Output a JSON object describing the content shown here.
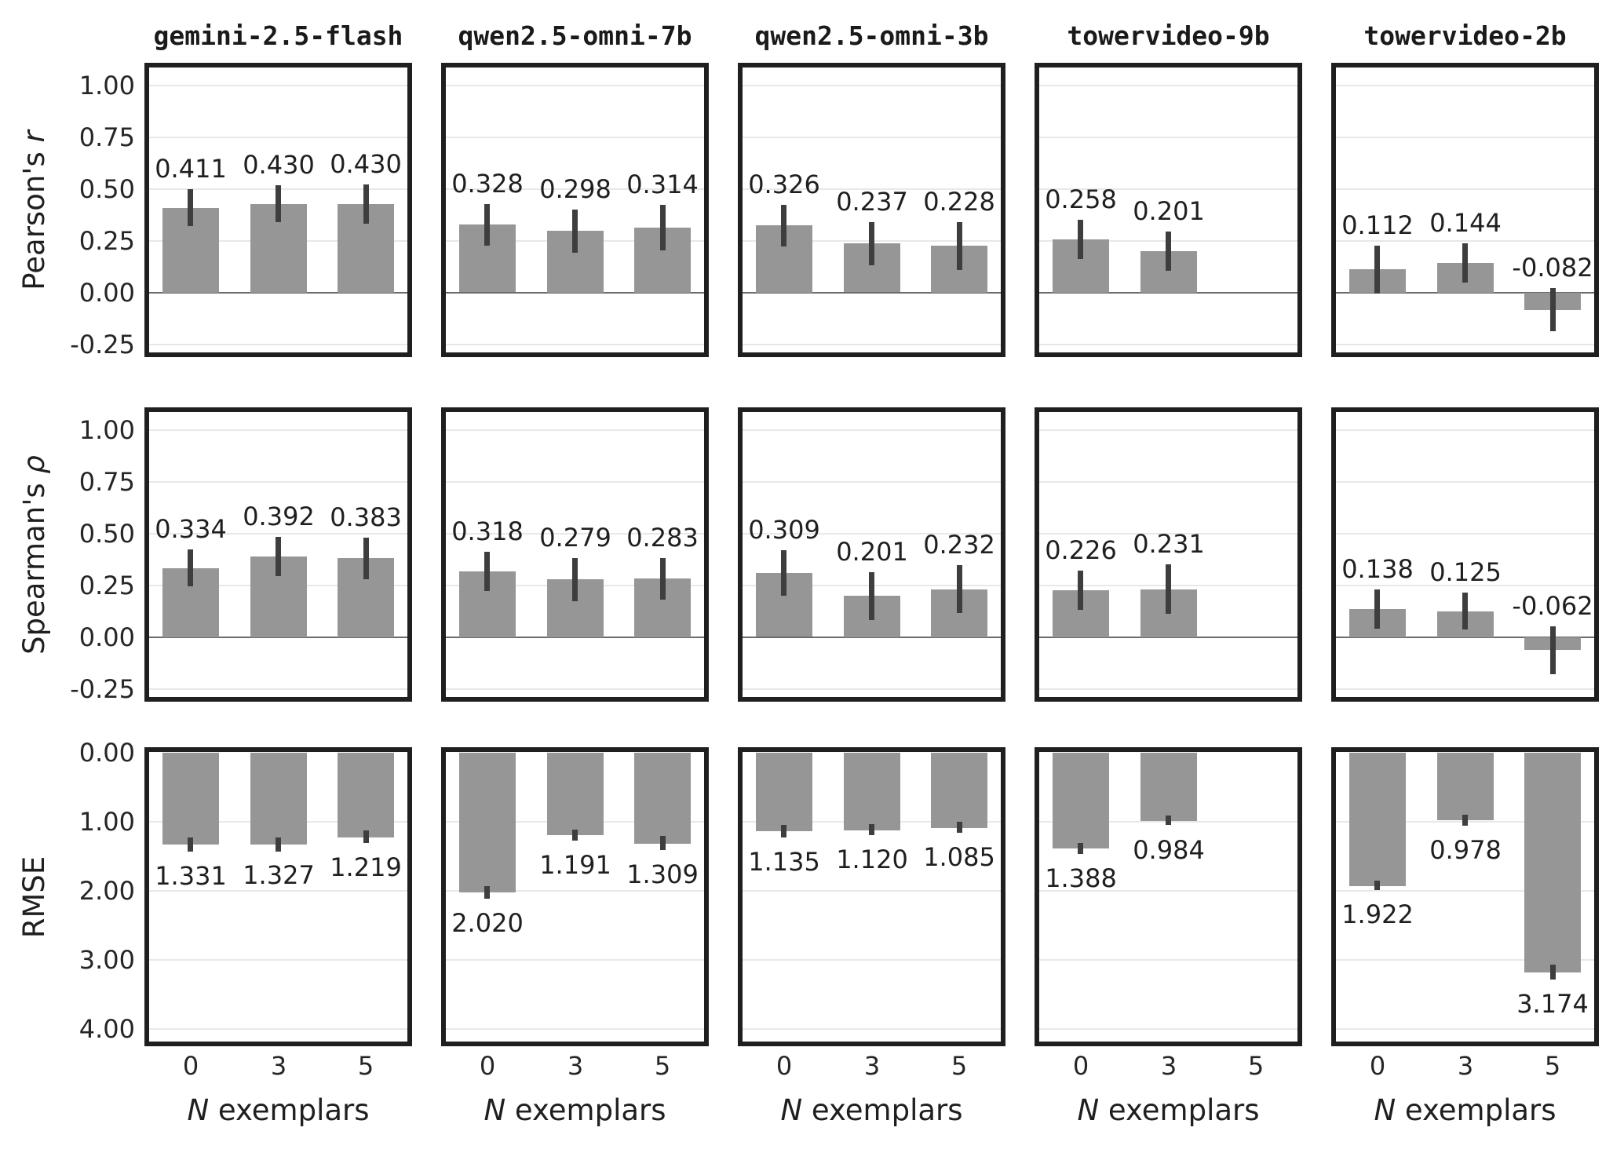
{
  "figure": {
    "background": "#ffffff",
    "bar_color": "#969696",
    "error_bar_color": "#3e3e3e",
    "grid_color": "#e8e8e8",
    "zero_line_color": "#6b6b6b",
    "border_color": "#1f1f1f",
    "text_color": "#1f1f1f"
  },
  "chart_data": {
    "type": "bar",
    "layout_note": "3 metric rows x 5 model columns, shared axes, error bars, value labels",
    "columns": [
      "gemini-2.5-flash",
      "qwen2.5-omni-7b",
      "qwen2.5-omni-3b",
      "towervideo-9b",
      "towervideo-2b"
    ],
    "x_categories": [
      "0",
      "3",
      "5"
    ],
    "xlabel_parts": [
      {
        "text": "N",
        "italic": true
      },
      {
        "text": " exemplars",
        "italic": false
      }
    ],
    "rows": [
      {
        "id": "pearson-r",
        "label_parts": [
          {
            "text": "Pearson's ",
            "italic": false
          },
          {
            "text": "r",
            "italic": true
          }
        ],
        "inverted": false,
        "zero_line": true,
        "axis": {
          "value_at_top": 1.1,
          "value_at_bottom": -0.3,
          "ticks": [
            {
              "v": 1.0,
              "label": "1.00"
            },
            {
              "v": 0.75,
              "label": "0.75"
            },
            {
              "v": 0.5,
              "label": "0.50"
            },
            {
              "v": 0.25,
              "label": "0.25"
            },
            {
              "v": 0.0,
              "label": "0.00"
            },
            {
              "v": -0.25,
              "label": "-0.25"
            }
          ]
        }
      },
      {
        "id": "spearman-rho",
        "label_parts": [
          {
            "text": "Spearman's ",
            "italic": false
          },
          {
            "text": "ρ",
            "italic": true
          }
        ],
        "inverted": false,
        "zero_line": true,
        "axis": {
          "value_at_top": 1.1,
          "value_at_bottom": -0.3,
          "ticks": [
            {
              "v": 1.0,
              "label": "1.00"
            },
            {
              "v": 0.75,
              "label": "0.75"
            },
            {
              "v": 0.5,
              "label": "0.50"
            },
            {
              "v": 0.25,
              "label": "0.25"
            },
            {
              "v": 0.0,
              "label": "0.00"
            },
            {
              "v": -0.25,
              "label": "-0.25"
            }
          ]
        }
      },
      {
        "id": "rmse",
        "label_parts": [
          {
            "text": "RMSE",
            "italic": false
          }
        ],
        "inverted": true,
        "zero_line": false,
        "axis": {
          "value_at_top": -0.04,
          "value_at_bottom": 4.21,
          "ticks": [
            {
              "v": 0.0,
              "label": "0.00"
            },
            {
              "v": 1.0,
              "label": "1.00"
            },
            {
              "v": 2.0,
              "label": "2.00"
            },
            {
              "v": 3.0,
              "label": "3.00"
            },
            {
              "v": 4.0,
              "label": "4.00"
            }
          ]
        }
      }
    ],
    "panels": [
      [
        {
          "values": [
            0.411,
            0.43,
            0.43
          ],
          "errors": [
            0.09,
            0.09,
            0.095
          ],
          "labels": [
            "0.411",
            "0.430",
            "0.430"
          ]
        },
        {
          "values": [
            0.328,
            0.298,
            0.314
          ],
          "errors": [
            0.1,
            0.105,
            0.11
          ],
          "labels": [
            "0.328",
            "0.298",
            "0.314"
          ]
        },
        {
          "values": [
            0.326,
            0.237,
            0.228
          ],
          "errors": [
            0.1,
            0.105,
            0.115
          ],
          "labels": [
            "0.326",
            "0.237",
            "0.228"
          ]
        },
        {
          "values": [
            0.258,
            0.201,
            null
          ],
          "errors": [
            0.095,
            0.095,
            null
          ],
          "labels": [
            "0.258",
            "0.201",
            null
          ]
        },
        {
          "values": [
            0.112,
            0.144,
            -0.082
          ],
          "errors": [
            0.115,
            0.095,
            0.105
          ],
          "labels": [
            "0.112",
            "0.144",
            "-0.082"
          ]
        }
      ],
      [
        {
          "values": [
            0.334,
            0.392,
            0.383
          ],
          "errors": [
            0.09,
            0.095,
            0.1
          ],
          "labels": [
            "0.334",
            "0.392",
            "0.383"
          ]
        },
        {
          "values": [
            0.318,
            0.279,
            0.283
          ],
          "errors": [
            0.095,
            0.105,
            0.1
          ],
          "labels": [
            "0.318",
            "0.279",
            "0.283"
          ]
        },
        {
          "values": [
            0.309,
            0.201,
            0.232
          ],
          "errors": [
            0.11,
            0.115,
            0.115
          ],
          "labels": [
            "0.309",
            "0.201",
            "0.232"
          ]
        },
        {
          "values": [
            0.226,
            0.231,
            null
          ],
          "errors": [
            0.095,
            0.12,
            null
          ],
          "labels": [
            "0.226",
            "0.231",
            null
          ]
        },
        {
          "values": [
            0.138,
            0.125,
            -0.062
          ],
          "errors": [
            0.095,
            0.09,
            0.115
          ],
          "labels": [
            "0.138",
            "0.125",
            "-0.062"
          ]
        }
      ],
      [
        {
          "values": [
            1.331,
            1.327,
            1.219
          ],
          "errors": [
            0.1,
            0.1,
            0.09
          ],
          "labels": [
            "1.331",
            "1.327",
            "1.219"
          ]
        },
        {
          "values": [
            2.02,
            1.191,
            1.309
          ],
          "errors": [
            0.09,
            0.08,
            0.1
          ],
          "labels": [
            "2.020",
            "1.191",
            "1.309"
          ]
        },
        {
          "values": [
            1.135,
            1.12,
            1.085
          ],
          "errors": [
            0.09,
            0.08,
            0.08
          ],
          "labels": [
            "1.135",
            "1.120",
            "1.085"
          ]
        },
        {
          "values": [
            1.388,
            0.984,
            null
          ],
          "errors": [
            0.08,
            0.07,
            null
          ],
          "labels": [
            "1.388",
            "0.984",
            null
          ]
        },
        {
          "values": [
            1.922,
            0.978,
            3.174
          ],
          "errors": [
            0.07,
            0.08,
            0.11
          ],
          "labels": [
            "1.922",
            "0.978",
            "3.174"
          ]
        }
      ]
    ]
  }
}
